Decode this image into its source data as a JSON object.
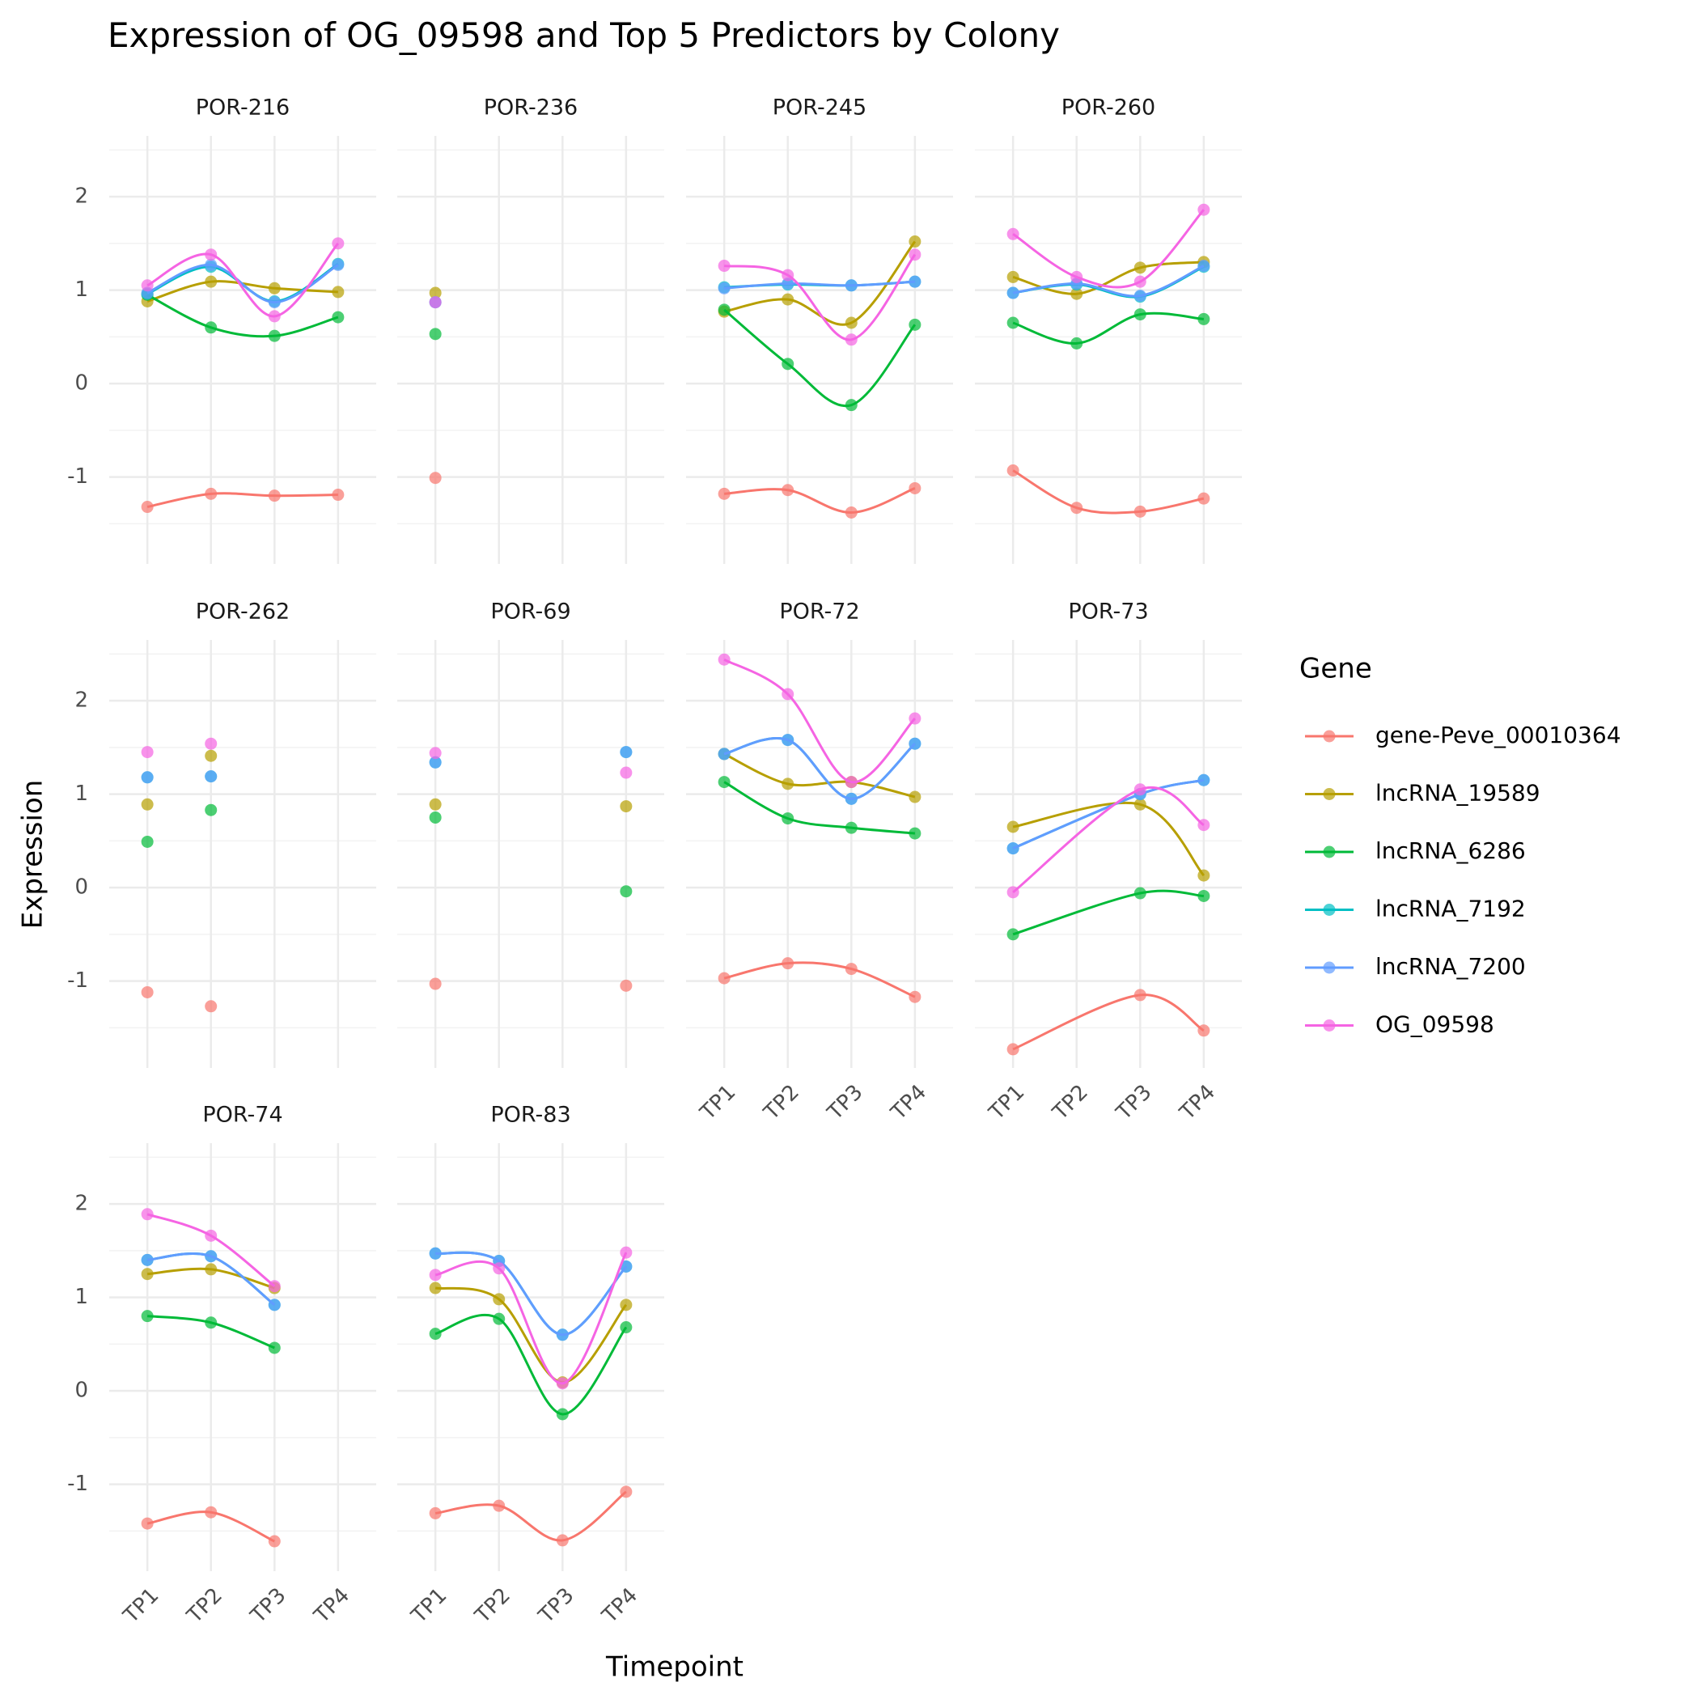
{
  "chart_data": {
    "type": "line",
    "title": "Expression of OG_09598 and Top 5 Predictors by Colony",
    "x_label": "Timepoint",
    "y_label": "Expression",
    "categories": [
      "TP1",
      "TP2",
      "TP3",
      "TP4"
    ],
    "ylim": [
      -1.93,
      2.65
    ],
    "yticks": [
      -1,
      0,
      1,
      2
    ],
    "y_minor_ticks": [
      -1.5,
      -0.5,
      0.5,
      1.5,
      2.5
    ],
    "grid": true,
    "legend": {
      "title": "Gene",
      "position": "right",
      "items": [
        {
          "name": "gene-Peve_00010364",
          "color": "#F8766D"
        },
        {
          "name": "lncRNA_19589",
          "color": "#B79F00"
        },
        {
          "name": "lncRNA_6286",
          "color": "#00BA38"
        },
        {
          "name": "lncRNA_7192",
          "color": "#00BFC4"
        },
        {
          "name": "lncRNA_7200",
          "color": "#619CFF"
        },
        {
          "name": "OG_09598",
          "color": "#F564E3"
        }
      ]
    },
    "facets": [
      {
        "title": "POR-216",
        "values": [
          [
            -1.32,
            -1.18,
            -1.2,
            -1.19
          ],
          [
            0.88,
            1.09,
            1.02,
            0.98
          ],
          [
            0.95,
            0.6,
            0.51,
            0.71
          ],
          [
            0.96,
            1.25,
            0.88,
            1.28
          ],
          [
            0.97,
            1.27,
            0.87,
            1.27
          ],
          [
            1.05,
            1.38,
            0.72,
            1.5
          ]
        ]
      },
      {
        "title": "POR-236",
        "values": [
          [
            -1.01,
            null,
            null,
            null
          ],
          [
            0.97,
            null,
            null,
            null
          ],
          [
            0.53,
            null,
            null,
            null
          ],
          [
            0.87,
            null,
            null,
            null
          ],
          [
            0.87,
            null,
            null,
            null
          ],
          [
            0.87,
            null,
            null,
            null
          ]
        ]
      },
      {
        "title": "POR-245",
        "values": [
          [
            -1.18,
            -1.14,
            -1.38,
            -1.12
          ],
          [
            0.77,
            0.9,
            0.65,
            1.52
          ],
          [
            0.79,
            0.21,
            -0.23,
            0.63
          ],
          [
            1.03,
            1.06,
            1.05,
            1.09
          ],
          [
            1.02,
            1.07,
            1.05,
            1.09
          ],
          [
            1.26,
            1.16,
            0.47,
            1.38
          ]
        ]
      },
      {
        "title": "POR-260",
        "values": [
          [
            -0.93,
            -1.33,
            -1.37,
            -1.23
          ],
          [
            1.14,
            0.96,
            1.24,
            1.3
          ],
          [
            0.65,
            0.43,
            0.74,
            0.69
          ],
          [
            0.97,
            1.06,
            0.93,
            1.25
          ],
          [
            0.97,
            1.07,
            0.94,
            1.26
          ],
          [
            1.6,
            1.14,
            1.09,
            1.86
          ]
        ]
      },
      {
        "title": "POR-262",
        "values": [
          [
            -1.12,
            -1.27,
            null,
            null
          ],
          [
            0.89,
            1.41,
            null,
            null
          ],
          [
            0.49,
            0.83,
            null,
            null
          ],
          [
            1.18,
            1.19,
            null,
            null
          ],
          [
            1.18,
            1.19,
            null,
            null
          ],
          [
            1.45,
            1.54,
            null,
            null
          ]
        ]
      },
      {
        "title": "POR-69",
        "values": [
          [
            -1.03,
            null,
            null,
            -1.05
          ],
          [
            0.89,
            null,
            null,
            0.87
          ],
          [
            0.75,
            null,
            null,
            -0.04
          ],
          [
            1.34,
            null,
            null,
            1.45
          ],
          [
            1.34,
            null,
            null,
            1.45
          ],
          [
            1.44,
            null,
            null,
            1.23
          ]
        ]
      },
      {
        "title": "POR-72",
        "values": [
          [
            -0.97,
            -0.81,
            -0.87,
            -1.17
          ],
          [
            1.43,
            1.11,
            1.13,
            0.97
          ],
          [
            1.13,
            0.74,
            0.64,
            0.58
          ],
          [
            1.43,
            1.58,
            0.95,
            1.54
          ],
          [
            1.43,
            1.58,
            0.95,
            1.54
          ],
          [
            2.44,
            2.07,
            1.13,
            1.81
          ]
        ]
      },
      {
        "title": "POR-73",
        "values": [
          [
            -1.73,
            null,
            -1.15,
            -1.53
          ],
          [
            0.65,
            null,
            0.89,
            0.13
          ],
          [
            -0.5,
            null,
            -0.06,
            -0.09
          ],
          [
            0.42,
            null,
            1.0,
            1.15
          ],
          [
            0.42,
            null,
            1.0,
            1.15
          ],
          [
            -0.05,
            null,
            1.05,
            0.67
          ]
        ]
      },
      {
        "title": "POR-74",
        "values": [
          [
            -1.42,
            -1.3,
            -1.61,
            null
          ],
          [
            1.25,
            1.3,
            1.1,
            null
          ],
          [
            0.8,
            0.73,
            0.46,
            null
          ],
          [
            1.4,
            1.44,
            0.92,
            null
          ],
          [
            1.4,
            1.44,
            0.92,
            null
          ],
          [
            1.89,
            1.66,
            1.12,
            null
          ]
        ]
      },
      {
        "title": "POR-83",
        "values": [
          [
            -1.31,
            -1.23,
            -1.6,
            -1.08
          ],
          [
            1.1,
            0.98,
            0.09,
            0.92
          ],
          [
            0.61,
            0.77,
            -0.25,
            0.68
          ],
          [
            1.47,
            1.39,
            0.6,
            1.33
          ],
          [
            1.47,
            1.39,
            0.6,
            1.33
          ],
          [
            1.24,
            1.31,
            0.08,
            1.48
          ]
        ]
      }
    ]
  }
}
